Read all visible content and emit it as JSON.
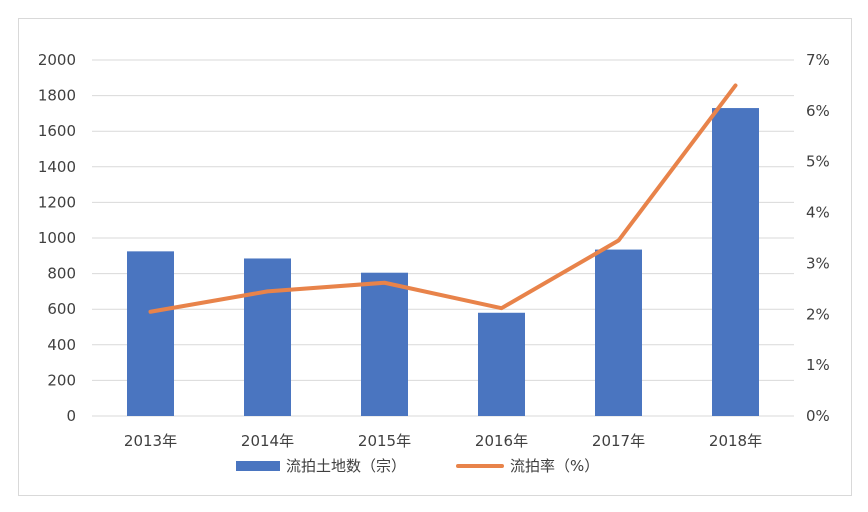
{
  "chart_data": {
    "type": "bar",
    "categories": [
      "2013年",
      "2014年",
      "2015年",
      "2016年",
      "2017年",
      "2018年"
    ],
    "series": [
      {
        "name": "流拍土地数（宗）",
        "type": "bar",
        "axis": "left",
        "color": "#4a75c0",
        "values": [
          925,
          885,
          805,
          580,
          935,
          1730
        ]
      },
      {
        "name": "流拍率（%）",
        "type": "line",
        "axis": "right",
        "color": "#e8834a",
        "values": [
          2.05,
          2.45,
          2.62,
          2.12,
          3.45,
          6.5
        ]
      }
    ],
    "y_left": {
      "min": 0,
      "max": 2000,
      "step": 200,
      "tick_labels": [
        "0",
        "200",
        "400",
        "600",
        "800",
        "1000",
        "1200",
        "1400",
        "1600",
        "1800",
        "2000"
      ]
    },
    "y_right": {
      "min": 0,
      "max": 7,
      "step": 1,
      "tick_labels": [
        "0%",
        "1%",
        "2%",
        "3%",
        "4%",
        "5%",
        "6%",
        "7%"
      ]
    },
    "grid": true,
    "legend_position": "bottom",
    "title": "",
    "xlabel": "",
    "ylabel": ""
  }
}
